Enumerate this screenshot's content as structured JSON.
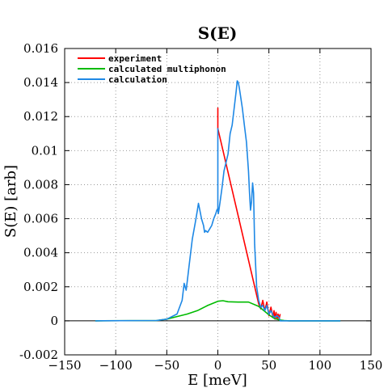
{
  "chart_data": {
    "type": "line",
    "title": "S(E)",
    "xlabel": "E [meV]",
    "ylabel": "S(E) [arb]",
    "xlim": [
      -150,
      150
    ],
    "ylim": [
      -0.002,
      0.016
    ],
    "grid": true,
    "legend_position": "top-left",
    "x_ticks": [
      -150,
      -100,
      -50,
      0,
      50,
      100,
      150
    ],
    "x_tick_labels": [
      "−150",
      "−100",
      "−50",
      "0",
      "50",
      "100",
      "150"
    ],
    "y_ticks": [
      -0.002,
      0,
      0.002,
      0.004,
      0.006,
      0.008,
      0.01,
      0.012,
      0.014,
      0.016
    ],
    "y_tick_labels": [
      "-0.002",
      "0",
      "0.002",
      "0.004",
      "0.006",
      "0.008",
      "0.01",
      "0.012",
      "0.014",
      "0.016"
    ],
    "series": [
      {
        "name": "experiment",
        "color": "#ff0000",
        "x": [
          0,
          0,
          0,
          40,
          42,
          44,
          46,
          48,
          50,
          52,
          54,
          55,
          56,
          57,
          58,
          59,
          60,
          61
        ],
        "y": [
          0.0115,
          0.0125,
          0.0113,
          0.001,
          0.0007,
          0.0012,
          0.0006,
          0.0011,
          0.0003,
          0.0008,
          0.0002,
          0.0006,
          0.0001,
          0.0005,
          0.0001,
          0.0004,
          0.0001,
          0.0004
        ]
      },
      {
        "name": "calculated multiphonon",
        "color": "#00bb00",
        "x": [
          -120,
          -60,
          -50,
          -40,
          -30,
          -20,
          -10,
          0,
          5,
          10,
          20,
          30,
          40,
          45,
          50,
          55,
          60,
          65,
          70,
          80,
          90,
          100,
          110,
          120
        ],
        "y": [
          0,
          2e-05,
          0.0001,
          0.00025,
          0.0004,
          0.0006,
          0.0009,
          0.00115,
          0.00118,
          0.00112,
          0.0011,
          0.0011,
          0.00085,
          0.0006,
          0.00035,
          0.00015,
          5e-05,
          2e-05,
          0,
          0,
          0,
          0,
          0,
          0
        ]
      },
      {
        "name": "calculation",
        "color": "#1e88e5",
        "x": [
          -120,
          -60,
          -50,
          -40,
          -35,
          -33,
          -31,
          -30,
          -28,
          -25,
          -22,
          -20,
          -19,
          -18,
          -16,
          -14,
          -13,
          -12,
          -10,
          -8,
          -6,
          -4,
          -2,
          -1,
          0,
          0,
          0,
          0.5,
          1,
          2,
          4,
          6,
          8,
          10,
          12,
          14,
          16,
          18,
          19,
          20,
          21,
          22,
          24,
          26,
          28,
          30,
          31,
          32,
          33,
          34,
          35,
          36,
          38,
          40,
          42,
          44,
          46,
          48,
          50,
          52,
          55,
          58,
          60,
          61,
          65,
          70,
          80,
          100,
          120
        ],
        "y": [
          0,
          2e-05,
          0.0001,
          0.0004,
          0.0012,
          0.0022,
          0.0018,
          0.0023,
          0.0033,
          0.0048,
          0.0058,
          0.0065,
          0.0069,
          0.0066,
          0.006,
          0.0056,
          0.0052,
          0.0053,
          0.0052,
          0.0054,
          0.0056,
          0.006,
          0.0063,
          0.0065,
          0.0066,
          0.0113,
          0.0065,
          0.0063,
          0.0065,
          0.0069,
          0.0078,
          0.0088,
          0.0093,
          0.0098,
          0.011,
          0.0115,
          0.0125,
          0.0135,
          0.0141,
          0.014,
          0.0137,
          0.0133,
          0.0125,
          0.0115,
          0.0105,
          0.0088,
          0.0075,
          0.0065,
          0.007,
          0.0081,
          0.0075,
          0.0045,
          0.002,
          0.0012,
          0.0008,
          0.0009,
          0.0006,
          0.0009,
          0.0004,
          0.0006,
          0.0002,
          0.0003,
          0.0002,
          0,
          0,
          0,
          0,
          0,
          0
        ]
      }
    ]
  }
}
